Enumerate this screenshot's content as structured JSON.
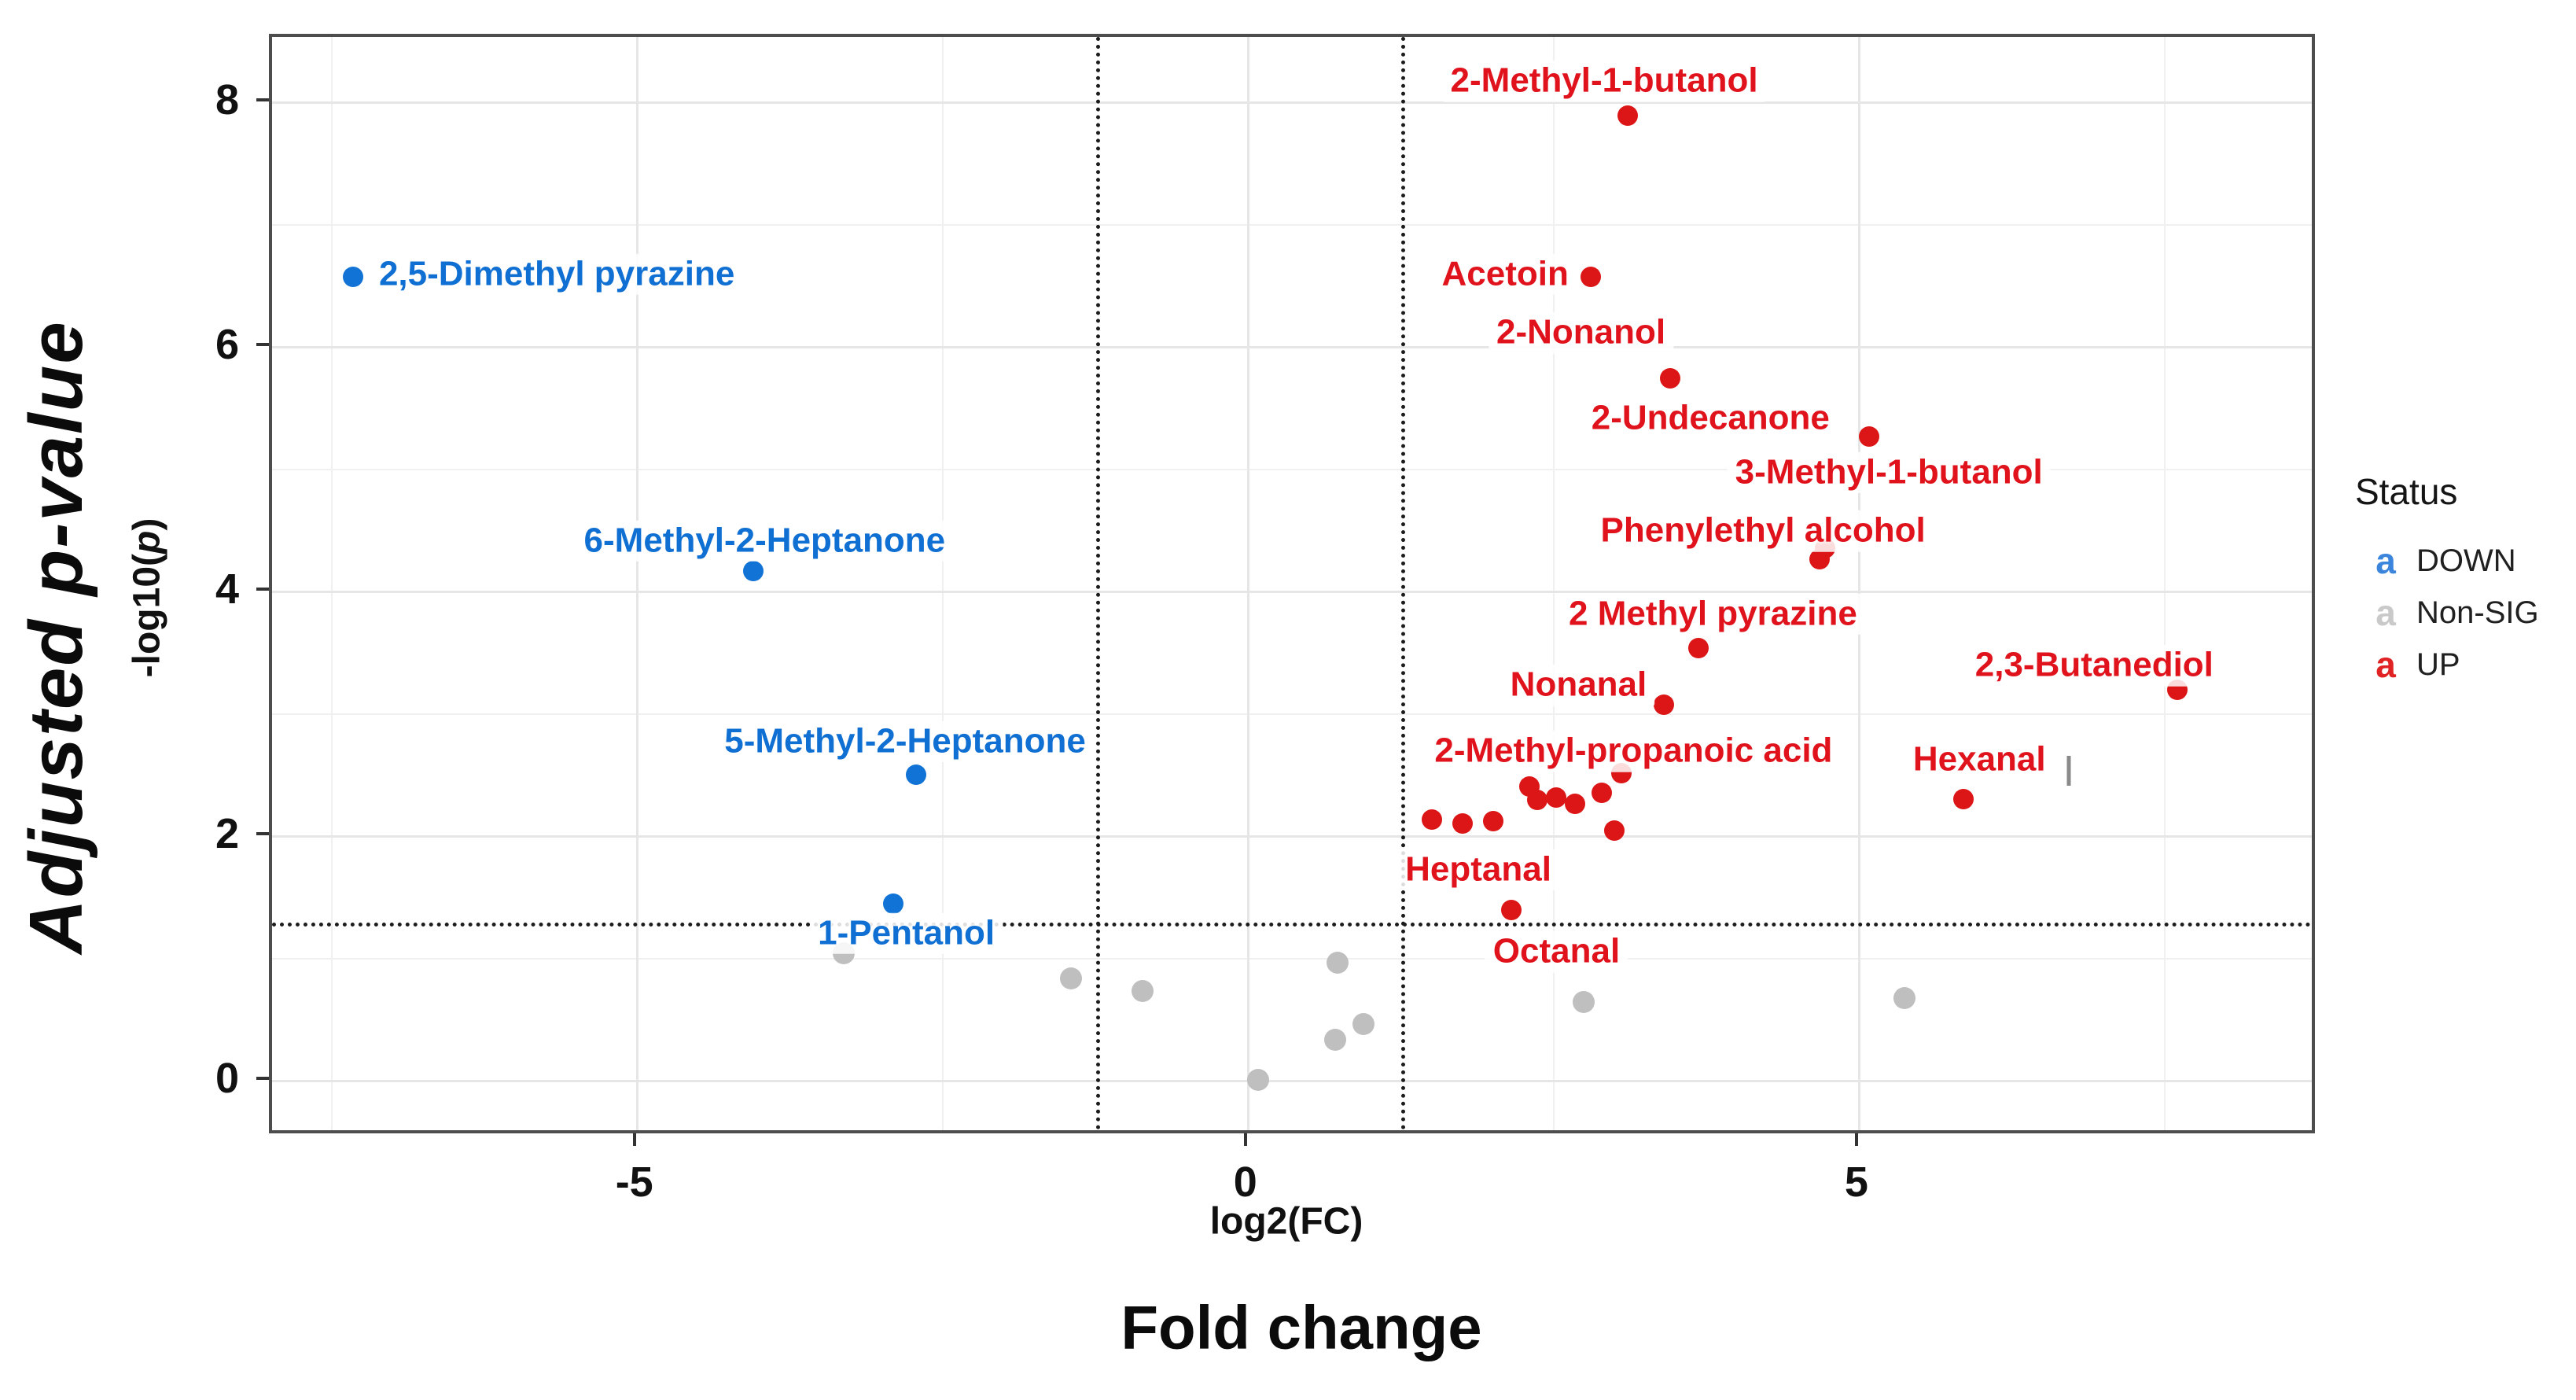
{
  "chart_data": {
    "type": "scatter",
    "title": "",
    "xlabel": "log2(FC)",
    "xlabel_secondary": "Fold change",
    "ylabel": "Adjusted p-value",
    "ylabel_code_prefix": "-log10(",
    "ylabel_code_var": "p",
    "ylabel_code_suffix": ")",
    "xlim": [
      -7.99,
      8.7
    ],
    "ylim": [
      -0.4,
      8.54
    ],
    "x_ticks": [
      {
        "value": -5,
        "label": "-5"
      },
      {
        "value": 0,
        "label": "0"
      },
      {
        "value": 5,
        "label": "5"
      }
    ],
    "y_ticks": [
      {
        "value": 0,
        "label": "0"
      },
      {
        "value": 2,
        "label": "2"
      },
      {
        "value": 4,
        "label": "4"
      },
      {
        "value": 6,
        "label": "6"
      },
      {
        "value": 8,
        "label": "8"
      }
    ],
    "x_major_grid": [
      -5,
      0,
      5
    ],
    "x_minor_grid": [
      -7.5,
      -2.5,
      2.5,
      7.5
    ],
    "y_major_grid": [
      0,
      2,
      4,
      6,
      8
    ],
    "y_minor_grid": [
      1,
      3,
      5,
      7
    ],
    "grid": "on",
    "thresholds": {
      "vlines": [
        -1.25,
        1.25
      ],
      "hline": 1.3
    },
    "legend": {
      "title": "Status",
      "position": "right",
      "marker_glyph": "a",
      "entries": [
        {
          "label": "DOWN",
          "color": "#3c85dc"
        },
        {
          "label": "Non-SIG",
          "color": "#c9c9c9"
        },
        {
          "label": "UP",
          "color": "#e02222"
        }
      ]
    },
    "series": [
      {
        "name": "DOWN",
        "color": "#1273d6",
        "label_color": "#0f6fd2",
        "dot_size": 26,
        "points": [
          {
            "x": -7.33,
            "y": 6.58,
            "label": "2,5-Dimethyl pyrazine",
            "lx": -5.66,
            "ly": 6.6
          },
          {
            "x": -4.05,
            "y": 4.17,
            "label": "6-Methyl-2-Heptanone",
            "lx": -3.96,
            "ly": 4.42
          },
          {
            "x": -2.72,
            "y": 2.51,
            "label": "5-Methyl-2-Heptanone",
            "lx": -2.81,
            "ly": 2.78
          },
          {
            "x": -2.91,
            "y": 1.45,
            "label": "1-Pentanol",
            "lx": -2.8,
            "ly": 1.21
          }
        ]
      },
      {
        "name": "Non-SIG",
        "color": "#bfbfbf",
        "label_color": "#9a9a9a",
        "dot_size": 28,
        "points": [
          {
            "x": -3.31,
            "y": 1.05
          },
          {
            "x": -1.45,
            "y": 0.84
          },
          {
            "x": -0.87,
            "y": 0.74
          },
          {
            "x": 0.73,
            "y": 0.97
          },
          {
            "x": 0.94,
            "y": 0.47
          },
          {
            "x": 0.71,
            "y": 0.34
          },
          {
            "x": 0.08,
            "y": 0.01
          },
          {
            "x": 2.74,
            "y": 0.65
          },
          {
            "x": 5.37,
            "y": 0.68
          }
        ]
      },
      {
        "name": "UP",
        "color": "#dc1616",
        "label_color": "#e0131c",
        "dot_size": 26,
        "points": [
          {
            "x": 3.1,
            "y": 7.9,
            "label": "2-Methyl-1-butanol",
            "lx": 2.91,
            "ly": 8.18
          },
          {
            "x": 2.8,
            "y": 6.58,
            "label": "Acetoin",
            "lx": 2.1,
            "ly": 6.6
          },
          {
            "x": 3.45,
            "y": 5.75,
            "label": "2-Nonanol",
            "lx": 2.72,
            "ly": 6.12
          },
          {
            "x": 5.08,
            "y": 5.27,
            "label": "2-Undecanone",
            "lx": 3.78,
            "ly": 5.42
          },
          {
            "x": 4.72,
            "y": 4.36,
            "label": "3-Methyl-1-butanol",
            "lx": 5.24,
            "ly": 4.98
          },
          {
            "x": 4.67,
            "y": 4.27,
            "label": "Phenylethyl alcohol",
            "lx": 4.21,
            "ly": 4.5
          },
          {
            "x": 3.68,
            "y": 3.54,
            "label": "2 Methyl pyrazine",
            "lx": 3.8,
            "ly": 3.82
          },
          {
            "x": 3.4,
            "y": 3.08,
            "label": "Nonanal",
            "lx": 2.7,
            "ly": 3.24
          },
          {
            "x": 7.6,
            "y": 3.2,
            "label": "2,3-Butanediol",
            "lx": 6.92,
            "ly": 3.4
          },
          {
            "x": 3.05,
            "y": 2.52,
            "label": "2-Methyl-propanoic acid",
            "lx": 3.15,
            "ly": 2.7
          },
          {
            "x": 5.85,
            "y": 2.31,
            "label": "Hexanal",
            "lx": 5.98,
            "ly": 2.63
          },
          {
            "x": 2.15,
            "y": 1.4,
            "label": "Heptanal",
            "lx": 1.88,
            "ly": 1.73
          },
          {
            "x": 1.5,
            "y": 2.14
          },
          {
            "x": 1.75,
            "y": 2.11
          },
          {
            "x": 2.0,
            "y": 2.13
          },
          {
            "x": 2.3,
            "y": 2.41
          },
          {
            "x": 2.36,
            "y": 2.3
          },
          {
            "x": 2.52,
            "y": 2.32
          },
          {
            "x": 2.67,
            "y": 2.27
          },
          {
            "x": 2.89,
            "y": 2.36
          },
          {
            "x": 2.99,
            "y": 2.05
          }
        ]
      }
    ],
    "annotations": [
      {
        "text": "Octanal",
        "x": 2.52,
        "y": 1.06,
        "color": "#e0131c"
      }
    ],
    "artifact_dash": {
      "x": 6.71,
      "y_top": 2.66,
      "y_bottom": 2.42
    }
  }
}
